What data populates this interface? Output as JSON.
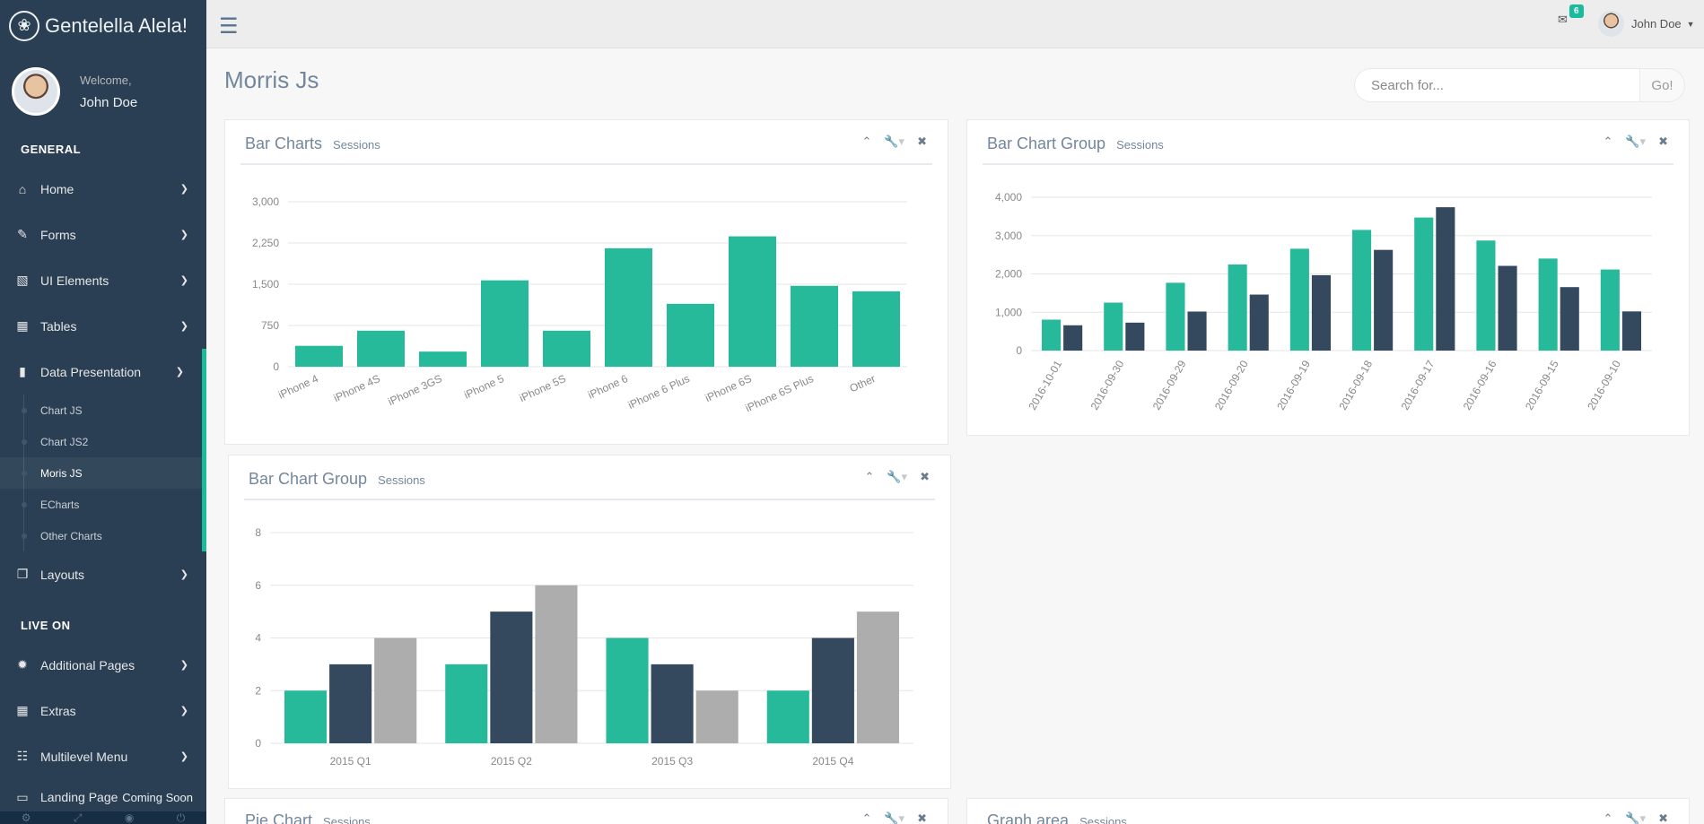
{
  "app": {
    "brand": "Gentelella Alela!",
    "brand_icon": "paw-icon"
  },
  "profile": {
    "welcome": "Welcome,",
    "name": "John Doe"
  },
  "sidebar": {
    "section_general": "GENERAL",
    "section_live": "LIVE ON",
    "items": [
      {
        "label": "Home",
        "icon": "home-icon"
      },
      {
        "label": "Forms",
        "icon": "edit-icon"
      },
      {
        "label": "UI Elements",
        "icon": "desktop-icon"
      },
      {
        "label": "Tables",
        "icon": "table-icon"
      },
      {
        "label": "Data Presentation",
        "icon": "bar-chart-icon"
      },
      {
        "label": "Layouts",
        "icon": "clone-icon"
      },
      {
        "label": "Additional Pages",
        "icon": "bug-icon"
      },
      {
        "label": "Extras",
        "icon": "windows-icon"
      },
      {
        "label": "Multilevel Menu",
        "icon": "sitemap-icon"
      },
      {
        "label": "Landing Page",
        "icon": "laptop-icon"
      }
    ],
    "sub_items": [
      "Chart JS",
      "Chart JS2",
      "Moris JS",
      "ECharts",
      "Other Charts"
    ],
    "coming_soon": "Coming Soon"
  },
  "topbar": {
    "mail_count": "6",
    "user": "John Doe"
  },
  "page": {
    "title": "Morris Js",
    "search_placeholder": "Search for...",
    "search_button": "Go!"
  },
  "panels": [
    {
      "title": "Bar Charts",
      "subtitle": "Sessions"
    },
    {
      "title": "Bar Chart Group",
      "subtitle": "Sessions"
    },
    {
      "title": "Bar Chart Group",
      "subtitle": "Sessions"
    },
    {
      "title": "Pie Chart",
      "subtitle": "Sessions"
    },
    {
      "title": "Graph area",
      "subtitle": "Sessions"
    }
  ],
  "chart_data": [
    {
      "type": "bar",
      "categories": [
        "iPhone 4",
        "iPhone 4S",
        "iPhone 3GS",
        "iPhone 5",
        "iPhone 5S",
        "iPhone 6",
        "iPhone 6 Plus",
        "iPhone 6S",
        "iPhone 6S Plus",
        "Other"
      ],
      "values": [
        380,
        655,
        275,
        1571,
        655,
        2154,
        1144,
        2371,
        1471,
        1371
      ],
      "yticks": [
        "3,000",
        "2,250",
        "1,500",
        "750",
        "0"
      ],
      "ylim": [
        0,
        3000
      ],
      "colors": [
        "#26B99A"
      ],
      "grid": true
    },
    {
      "type": "bar",
      "categories": [
        "2016-10-01",
        "2016-09-30",
        "2016-09-29",
        "2016-09-20",
        "2016-09-19",
        "2016-09-18",
        "2016-09-17",
        "2016-09-16",
        "2016-09-15",
        "2016-09-10"
      ],
      "series": [
        {
          "values": [
            807,
            1251,
            1769,
            2246,
            2657,
            3148,
            3471,
            2871,
            2401,
            2115
          ]
        },
        {
          "values": [
            660,
            729,
            1018,
            1461,
            1967,
            2627,
            3740,
            2210,
            1656,
            1022
          ]
        }
      ],
      "yticks": [
        "4,000",
        "3,000",
        "2,000",
        "1,000",
        "0"
      ],
      "ylim": [
        0,
        4000
      ],
      "colors": [
        "#26B99A",
        "#34495E"
      ],
      "grid": true
    },
    {
      "type": "bar",
      "categories": [
        "2015 Q1",
        "2015 Q2",
        "2015 Q3",
        "2015 Q4"
      ],
      "series": [
        {
          "values": [
            2,
            3,
            4,
            2
          ]
        },
        {
          "values": [
            3,
            5,
            3,
            4
          ]
        },
        {
          "values": [
            4,
            6,
            2,
            5
          ]
        }
      ],
      "yticks": [
        "8",
        "6",
        "4",
        "2",
        "0"
      ],
      "ylim": [
        0,
        8
      ],
      "colors": [
        "#26B99A",
        "#34495E",
        "#ACADAC"
      ],
      "grid": true
    }
  ]
}
